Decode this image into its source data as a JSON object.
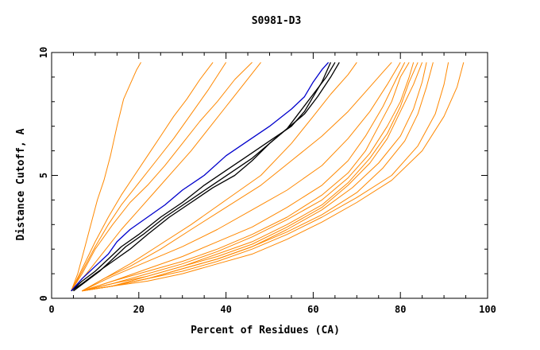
{
  "chart_data": {
    "type": "line",
    "title": "S0981-D3",
    "xlabel": "Percent of Residues (CA)",
    "ylabel": "Distance Cutoff, A",
    "xlim": [
      0,
      100
    ],
    "ylim": [
      0,
      10
    ],
    "xticks": [
      0,
      20,
      40,
      60,
      80,
      100
    ],
    "yticks": [
      0,
      5,
      10
    ],
    "colors": {
      "highlight": "#0000cc",
      "reference": "#000000",
      "others": "#ff8800"
    },
    "series": [
      {
        "name": "blue",
        "color": "#0000cc",
        "x": [
          4.5,
          7,
          10,
          13,
          15,
          18,
          22,
          26,
          30,
          35,
          40,
          45,
          50,
          55,
          58,
          60,
          62,
          63.5
        ],
        "y": [
          0.3,
          0.8,
          1.3,
          1.8,
          2.3,
          2.8,
          3.3,
          3.8,
          4.4,
          5.0,
          5.8,
          6.4,
          7.0,
          7.7,
          8.2,
          8.8,
          9.3,
          9.6
        ]
      },
      {
        "name": "black-1",
        "color": "#000000",
        "x": [
          4.5,
          7,
          10,
          13,
          16,
          20,
          25,
          30,
          35,
          40,
          45,
          50,
          55,
          58,
          60,
          62,
          64
        ],
        "y": [
          0.3,
          0.7,
          1.1,
          1.6,
          2.1,
          2.6,
          3.3,
          3.9,
          4.6,
          5.2,
          5.8,
          6.4,
          7.0,
          7.6,
          8.2,
          8.8,
          9.6
        ]
      },
      {
        "name": "black-2",
        "color": "#000000",
        "x": [
          5,
          8,
          11,
          14,
          17,
          21,
          26,
          31,
          36,
          41,
          46,
          50,
          54,
          57,
          60,
          63,
          65
        ],
        "y": [
          0.3,
          0.7,
          1.1,
          1.6,
          2.1,
          2.6,
          3.3,
          3.9,
          4.5,
          5.1,
          5.7,
          6.3,
          6.9,
          7.6,
          8.3,
          9.0,
          9.6
        ]
      },
      {
        "name": "black-3",
        "color": "#000000",
        "x": [
          4.5,
          7,
          10,
          14,
          18,
          22,
          27,
          32,
          37,
          42,
          46,
          50,
          54,
          58,
          61,
          64,
          66
        ],
        "y": [
          0.3,
          0.6,
          1.0,
          1.5,
          2.0,
          2.6,
          3.3,
          3.9,
          4.5,
          5.0,
          5.6,
          6.3,
          6.9,
          7.5,
          8.2,
          9.0,
          9.6
        ]
      },
      {
        "name": "orange-01",
        "color": "#ff8800",
        "x": [
          4.5,
          6,
          7.5,
          9,
          10.5,
          12,
          13.5,
          15,
          16.5,
          18,
          19.5,
          20.5
        ],
        "y": [
          0.3,
          1.0,
          2.0,
          3.0,
          4.0,
          4.8,
          5.8,
          7.0,
          8.1,
          8.7,
          9.3,
          9.6
        ]
      },
      {
        "name": "orange-02",
        "color": "#ff8800",
        "x": [
          4.5,
          7,
          10,
          13,
          16,
          19,
          22,
          25,
          28,
          31,
          34,
          37
        ],
        "y": [
          0.3,
          1.2,
          2.3,
          3.3,
          4.2,
          5.0,
          5.8,
          6.6,
          7.4,
          8.1,
          8.9,
          9.6
        ]
      },
      {
        "name": "orange-03",
        "color": "#ff8800",
        "x": [
          4.5,
          7,
          10,
          14,
          18,
          22,
          26,
          30,
          34,
          38,
          42,
          46
        ],
        "y": [
          0.3,
          1.0,
          2.0,
          3.0,
          3.9,
          4.6,
          5.4,
          6.3,
          7.2,
          8.0,
          8.9,
          9.6
        ]
      },
      {
        "name": "orange-04",
        "color": "#ff8800",
        "x": [
          4.5,
          8,
          12,
          16,
          20,
          24,
          28,
          32,
          36,
          40,
          44,
          48
        ],
        "y": [
          0.3,
          1.0,
          1.9,
          2.8,
          3.6,
          4.4,
          5.2,
          6.0,
          6.9,
          7.8,
          8.7,
          9.6
        ]
      },
      {
        "name": "orange-05",
        "color": "#ff8800",
        "x": [
          4.5,
          7,
          10,
          13,
          16,
          20,
          24,
          28,
          32,
          36,
          40
        ],
        "y": [
          0.3,
          1.1,
          2.1,
          3.0,
          3.8,
          4.7,
          5.6,
          6.5,
          7.5,
          8.5,
          9.6
        ]
      },
      {
        "name": "orange-06",
        "color": "#ff8800",
        "x": [
          7,
          12,
          18,
          25,
          32,
          40,
          48,
          55,
          60,
          64,
          68,
          70
        ],
        "y": [
          0.3,
          0.8,
          1.4,
          2.2,
          3.0,
          4.0,
          5.0,
          6.3,
          7.4,
          8.3,
          9.1,
          9.6
        ]
      },
      {
        "name": "orange-07",
        "color": "#ff8800",
        "x": [
          7,
          12,
          18,
          25,
          32,
          40,
          48,
          55,
          62,
          68,
          72,
          76,
          78
        ],
        "y": [
          0.3,
          0.8,
          1.3,
          2.0,
          2.8,
          3.7,
          4.6,
          5.6,
          6.6,
          7.6,
          8.4,
          9.2,
          9.6
        ]
      },
      {
        "name": "orange-08",
        "color": "#ff8800",
        "x": [
          7,
          14,
          22,
          30,
          38,
          46,
          54,
          62,
          68,
          73,
          77,
          80
        ],
        "y": [
          0.3,
          0.9,
          1.5,
          2.1,
          2.8,
          3.6,
          4.4,
          5.4,
          6.5,
          7.6,
          8.7,
          9.6
        ]
      },
      {
        "name": "orange-09",
        "color": "#ff8800",
        "x": [
          7,
          14,
          22,
          30,
          38,
          46,
          54,
          62,
          68,
          72,
          76,
          79,
          81
        ],
        "y": [
          0.3,
          0.7,
          1.2,
          1.7,
          2.3,
          2.9,
          3.7,
          4.6,
          5.6,
          6.6,
          7.8,
          8.9,
          9.6
        ]
      },
      {
        "name": "orange-10",
        "color": "#ff8800",
        "x": [
          7,
          14,
          22,
          30,
          38,
          46,
          54,
          62,
          68,
          72,
          75,
          78,
          80,
          82
        ],
        "y": [
          0.3,
          0.7,
          1.1,
          1.5,
          2.0,
          2.6,
          3.3,
          4.2,
          5.1,
          6.0,
          7.0,
          8.0,
          9.0,
          9.6
        ]
      },
      {
        "name": "orange-11",
        "color": "#ff8800",
        "x": [
          7,
          14,
          22,
          30,
          38,
          46,
          54,
          62,
          68,
          73,
          77,
          80,
          82,
          83
        ],
        "y": [
          0.3,
          0.6,
          1.0,
          1.4,
          1.9,
          2.5,
          3.2,
          4.0,
          4.9,
          5.9,
          7.0,
          8.0,
          9.0,
          9.6
        ]
      },
      {
        "name": "orange-12",
        "color": "#ff8800",
        "x": [
          7,
          14,
          22,
          30,
          38,
          46,
          54,
          62,
          68,
          73,
          77,
          80,
          82,
          84
        ],
        "y": [
          0.3,
          0.6,
          0.9,
          1.3,
          1.8,
          2.3,
          3.0,
          3.8,
          4.7,
          5.7,
          6.7,
          7.8,
          8.8,
          9.6
        ]
      },
      {
        "name": "orange-13",
        "color": "#ff8800",
        "x": [
          7,
          14,
          22,
          30,
          38,
          46,
          54,
          62,
          68,
          73,
          77,
          80,
          83,
          85
        ],
        "y": [
          0.3,
          0.5,
          0.9,
          1.3,
          1.7,
          2.2,
          2.9,
          3.7,
          4.6,
          5.5,
          6.5,
          7.6,
          8.7,
          9.6
        ]
      },
      {
        "name": "orange-14",
        "color": "#ff8800",
        "x": [
          7,
          14,
          22,
          30,
          38,
          46,
          54,
          62,
          69,
          75,
          80,
          83,
          85,
          86
        ],
        "y": [
          0.3,
          0.5,
          0.8,
          1.2,
          1.6,
          2.1,
          2.8,
          3.6,
          4.5,
          5.5,
          6.6,
          7.7,
          8.8,
          9.6
        ]
      },
      {
        "name": "orange-15",
        "color": "#ff8800",
        "x": [
          7,
          14,
          22,
          30,
          38,
          46,
          54,
          62,
          70,
          76,
          81,
          84,
          86,
          87.5
        ],
        "y": [
          0.3,
          0.5,
          0.8,
          1.2,
          1.6,
          2.1,
          2.7,
          3.4,
          4.3,
          5.3,
          6.4,
          7.5,
          8.6,
          9.6
        ]
      },
      {
        "name": "orange-16",
        "color": "#ff8800",
        "x": [
          7,
          14,
          22,
          30,
          38,
          46,
          54,
          62,
          70,
          78,
          84,
          88,
          90,
          91
        ],
        "y": [
          0.3,
          0.5,
          0.8,
          1.1,
          1.5,
          2.0,
          2.6,
          3.3,
          4.1,
          5.0,
          6.2,
          7.5,
          8.7,
          9.6
        ]
      },
      {
        "name": "orange-17",
        "color": "#ff8800",
        "x": [
          7,
          14,
          22,
          30,
          38,
          46,
          54,
          62,
          70,
          78,
          85,
          90,
          93,
          94.5
        ],
        "y": [
          0.3,
          0.5,
          0.7,
          1.0,
          1.4,
          1.8,
          2.4,
          3.1,
          3.9,
          4.8,
          6.0,
          7.4,
          8.6,
          9.6
        ]
      }
    ]
  }
}
